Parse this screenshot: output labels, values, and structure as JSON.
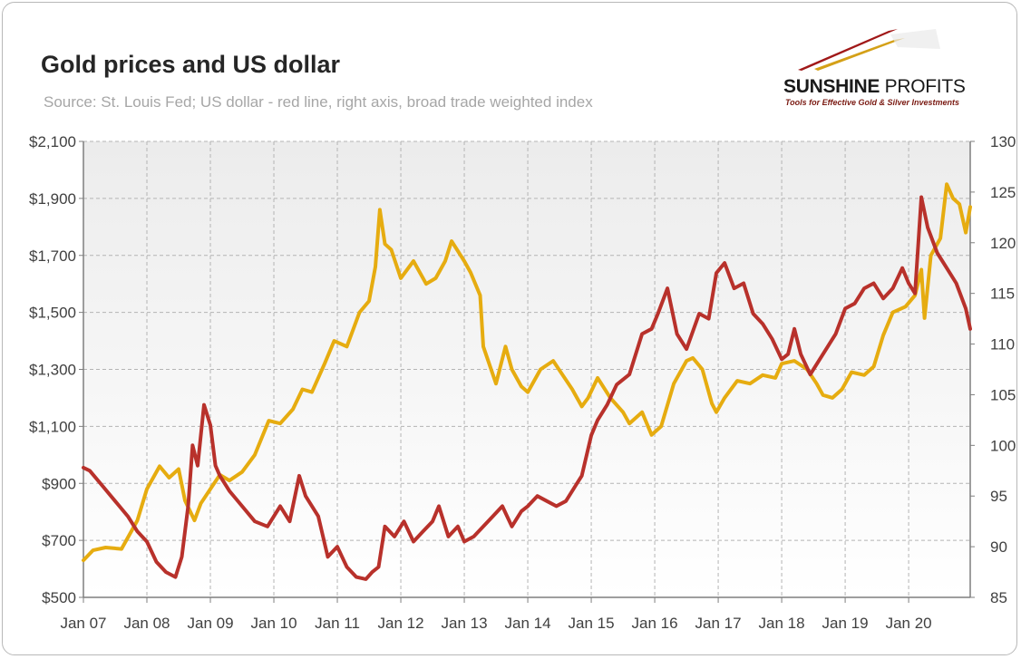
{
  "header": {
    "title": "Gold prices and US dollar",
    "subtitle": "Source: St. Louis Fed; US dollar - red line, right axis, broad trade weighted index"
  },
  "logo": {
    "name_bold": "SUNSHINE",
    "name_light": " PROFITS",
    "tagline": "Tools for Effective Gold & Silver Investments",
    "colors": [
      "#a01818",
      "#d4a017",
      "#c8c8c8"
    ]
  },
  "chart_data": {
    "type": "line",
    "x_ticks": [
      "Jan 07",
      "Jan 08",
      "Jan 09",
      "Jan 10",
      "Jan 11",
      "Jan 12",
      "Jan 13",
      "Jan 14",
      "Jan 15",
      "Jan 16",
      "Jan 17",
      "Jan 18",
      "Jan 19",
      "Jan 20"
    ],
    "x_range": [
      2007.0,
      2020.97
    ],
    "left_axis": {
      "ticks": [
        "$500",
        "$700",
        "$900",
        "$1,100",
        "$1,300",
        "$1,500",
        "$1,700",
        "$1,900",
        "$2,100"
      ],
      "ylim": [
        500,
        2100
      ]
    },
    "right_axis": {
      "ticks": [
        "85",
        "90",
        "95",
        "100",
        "105",
        "110",
        "115",
        "120",
        "125",
        "130"
      ],
      "ylim": [
        85,
        130
      ]
    },
    "grid": true,
    "colors": {
      "gold": "#e6ac10",
      "dollar": "#b8312b",
      "grid": "#b4b4b4",
      "axis": "#7f7f7f"
    },
    "series": [
      {
        "axis": "left",
        "color": "#e6ac10",
        "x": [
          2007.0,
          2007.15,
          2007.35,
          2007.6,
          2007.85,
          2008.0,
          2008.2,
          2008.35,
          2008.5,
          2008.6,
          2008.75,
          2008.85,
          2009.0,
          2009.15,
          2009.3,
          2009.5,
          2009.7,
          2009.92,
          2010.1,
          2010.3,
          2010.45,
          2010.6,
          2010.8,
          2010.95,
          2011.15,
          2011.35,
          2011.5,
          2011.6,
          2011.67,
          2011.75,
          2011.85,
          2012.0,
          2012.2,
          2012.4,
          2012.55,
          2012.7,
          2012.8,
          2013.0,
          2013.1,
          2013.25,
          2013.3,
          2013.5,
          2013.65,
          2013.75,
          2013.9,
          2014.0,
          2014.2,
          2014.4,
          2014.55,
          2014.7,
          2014.85,
          2014.95,
          2015.1,
          2015.3,
          2015.5,
          2015.6,
          2015.8,
          2015.95,
          2016.1,
          2016.3,
          2016.5,
          2016.6,
          2016.75,
          2016.9,
          2016.97,
          2017.1,
          2017.3,
          2017.5,
          2017.7,
          2017.9,
          2018.0,
          2018.2,
          2018.4,
          2018.55,
          2018.65,
          2018.8,
          2018.95,
          2019.1,
          2019.3,
          2019.45,
          2019.6,
          2019.75,
          2019.95,
          2020.1,
          2020.2,
          2020.25,
          2020.35,
          2020.5,
          2020.6,
          2020.7,
          2020.8,
          2020.9,
          2020.97
        ],
        "values": [
          630,
          665,
          675,
          670,
          770,
          880,
          960,
          920,
          950,
          840,
          770,
          830,
          880,
          930,
          910,
          940,
          1000,
          1120,
          1110,
          1160,
          1230,
          1220,
          1320,
          1400,
          1380,
          1500,
          1540,
          1660,
          1860,
          1740,
          1720,
          1620,
          1680,
          1600,
          1620,
          1680,
          1750,
          1680,
          1640,
          1560,
          1380,
          1250,
          1380,
          1300,
          1240,
          1220,
          1300,
          1330,
          1280,
          1230,
          1170,
          1200,
          1270,
          1200,
          1150,
          1110,
          1150,
          1070,
          1100,
          1250,
          1330,
          1340,
          1300,
          1180,
          1150,
          1200,
          1260,
          1250,
          1280,
          1270,
          1320,
          1330,
          1300,
          1250,
          1210,
          1200,
          1230,
          1290,
          1280,
          1310,
          1420,
          1500,
          1520,
          1560,
          1650,
          1480,
          1700,
          1760,
          1950,
          1900,
          1880,
          1780,
          1870
        ]
      },
      {
        "axis": "right",
        "color": "#b8312b",
        "x": [
          2007.0,
          2007.1,
          2007.3,
          2007.5,
          2007.7,
          2007.85,
          2008.0,
          2008.15,
          2008.3,
          2008.45,
          2008.55,
          2008.65,
          2008.72,
          2008.8,
          2008.9,
          2009.0,
          2009.08,
          2009.15,
          2009.3,
          2009.5,
          2009.7,
          2009.9,
          2010.1,
          2010.25,
          2010.4,
          2010.5,
          2010.7,
          2010.85,
          2011.0,
          2011.15,
          2011.3,
          2011.45,
          2011.55,
          2011.65,
          2011.75,
          2011.9,
          2012.05,
          2012.2,
          2012.35,
          2012.5,
          2012.6,
          2012.75,
          2012.9,
          2013.0,
          2013.15,
          2013.3,
          2013.45,
          2013.6,
          2013.75,
          2013.9,
          2014.0,
          2014.15,
          2014.3,
          2014.45,
          2014.6,
          2014.75,
          2014.85,
          2015.0,
          2015.1,
          2015.25,
          2015.4,
          2015.6,
          2015.8,
          2015.95,
          2016.05,
          2016.2,
          2016.35,
          2016.5,
          2016.7,
          2016.85,
          2016.97,
          2017.1,
          2017.25,
          2017.4,
          2017.55,
          2017.7,
          2017.85,
          2018.0,
          2018.1,
          2018.2,
          2018.3,
          2018.45,
          2018.6,
          2018.75,
          2018.85,
          2019.0,
          2019.15,
          2019.3,
          2019.45,
          2019.6,
          2019.75,
          2019.9,
          2020.0,
          2020.1,
          2020.2,
          2020.3,
          2020.45,
          2020.6,
          2020.75,
          2020.9,
          2020.97
        ],
        "values": [
          97.8,
          97.5,
          96.0,
          94.5,
          93.0,
          91.5,
          90.5,
          88.5,
          87.5,
          87.0,
          89.0,
          94.0,
          100.0,
          98.0,
          104.0,
          102.0,
          98.0,
          97.0,
          95.5,
          94.0,
          92.5,
          92.0,
          94.0,
          92.5,
          97.0,
          95.0,
          93.0,
          89.0,
          90.0,
          88.0,
          87.0,
          86.8,
          87.5,
          88.0,
          92.0,
          91.0,
          92.5,
          90.5,
          91.5,
          92.5,
          94.0,
          91.0,
          92.0,
          90.5,
          91.0,
          92.0,
          93.0,
          94.0,
          92.0,
          93.5,
          94.0,
          95.0,
          94.5,
          94.0,
          94.5,
          96.0,
          97.0,
          101.0,
          102.5,
          104.0,
          106.0,
          107.0,
          111.0,
          111.5,
          113.0,
          115.5,
          111.0,
          109.5,
          113.0,
          112.5,
          117.0,
          118.0,
          115.5,
          116.0,
          113.0,
          112.0,
          110.5,
          108.5,
          109.0,
          111.5,
          109.0,
          107.0,
          108.5,
          110.0,
          111.0,
          113.5,
          114.0,
          115.5,
          116.0,
          114.5,
          115.5,
          117.5,
          116.0,
          115.0,
          124.5,
          121.5,
          119.0,
          117.5,
          116.0,
          113.5,
          111.5
        ]
      }
    ]
  }
}
